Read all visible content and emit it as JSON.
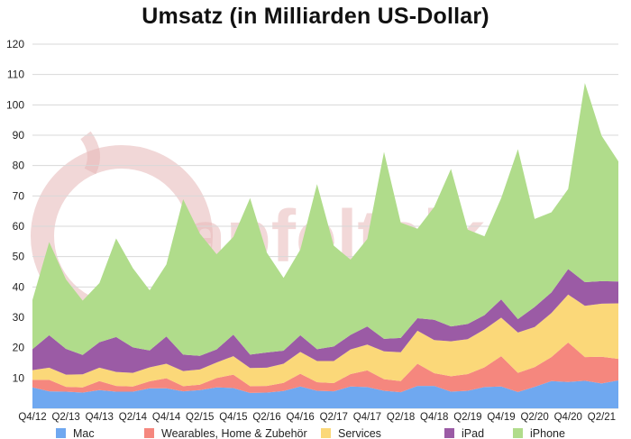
{
  "chart_data": {
    "type": "area",
    "stacked": true,
    "title": "Umsatz (in Milliarden US-Dollar)",
    "watermark": "apfeltalk",
    "ylim": [
      0,
      120
    ],
    "yticks": [
      10,
      20,
      30,
      40,
      50,
      60,
      70,
      80,
      90,
      100,
      110,
      120
    ],
    "grid": true,
    "legend_position": "bottom",
    "x": [
      "Q4/12",
      "Q1/13",
      "Q2/13",
      "Q3/13",
      "Q4/13",
      "Q1/14",
      "Q2/14",
      "Q3/14",
      "Q4/14",
      "Q1/15",
      "Q2/15",
      "Q3/15",
      "Q4/15",
      "Q1/16",
      "Q2/16",
      "Q3/16",
      "Q4/16",
      "Q1/17",
      "Q2/17",
      "Q3/17",
      "Q4/17",
      "Q1/18",
      "Q2/18",
      "Q3/18",
      "Q4/18",
      "Q1/19",
      "Q2/19",
      "Q3/19",
      "Q4/19",
      "Q1/20",
      "Q2/20",
      "Q3/20",
      "Q4/20",
      "Q1/21",
      "Q2/21",
      "Q3/21"
    ],
    "xtick_labels": [
      "Q4/12",
      "Q2/13",
      "Q4/13",
      "Q2/14",
      "Q4/14",
      "Q2/15",
      "Q4/15",
      "Q2/16",
      "Q4/16",
      "Q2/17",
      "Q4/17",
      "Q2/18",
      "Q4/18",
      "Q2/19",
      "Q4/19",
      "Q2/20",
      "Q4/20",
      "Q2/21"
    ],
    "series": [
      {
        "name": "Mac",
        "color": "#6fa8f0",
        "values": [
          6.9,
          5.6,
          5.5,
          5.2,
          6.0,
          5.5,
          5.5,
          6.6,
          6.6,
          5.6,
          6.0,
          6.9,
          6.7,
          5.1,
          5.2,
          5.7,
          7.2,
          5.8,
          5.6,
          7.2,
          7.0,
          5.8,
          5.3,
          7.4,
          7.4,
          5.5,
          5.8,
          7.0,
          7.2,
          5.4,
          7.1,
          9.0,
          8.7,
          9.1,
          8.2,
          9.2
        ]
      },
      {
        "name": "Wearables, Home & Zubehör",
        "color": "#f5877e",
        "values": [
          2.5,
          3.8,
          1.6,
          1.7,
          3.0,
          1.9,
          1.7,
          2.3,
          3.3,
          1.7,
          1.8,
          3.1,
          4.4,
          2.2,
          2.2,
          2.7,
          4.2,
          2.8,
          2.7,
          4.1,
          5.5,
          3.8,
          3.7,
          7.3,
          4.2,
          5.1,
          5.5,
          6.5,
          10.0,
          6.3,
          6.5,
          7.9,
          13.0,
          7.8,
          8.8,
          7.1
        ]
      },
      {
        "name": "Services",
        "color": "#fbd879",
        "values": [
          3.2,
          4.0,
          4.0,
          4.3,
          4.4,
          4.6,
          4.5,
          4.6,
          4.8,
          5.0,
          5.0,
          5.1,
          6.1,
          6.0,
          6.0,
          6.3,
          7.2,
          7.0,
          7.3,
          8.1,
          8.5,
          9.2,
          9.5,
          10.9,
          10.9,
          11.5,
          11.5,
          12.5,
          12.7,
          13.3,
          13.2,
          14.5,
          15.8,
          16.9,
          17.5,
          18.3
        ]
      },
      {
        "name": "iPad",
        "color": "#9b5ba5",
        "values": [
          6.9,
          10.7,
          8.5,
          6.4,
          8.4,
          11.5,
          8.4,
          5.6,
          9.0,
          5.4,
          4.5,
          4.3,
          7.1,
          4.4,
          5.0,
          4.3,
          5.5,
          3.9,
          4.8,
          4.8,
          6.0,
          4.1,
          4.7,
          4.1,
          6.7,
          4.9,
          5.0,
          4.7,
          6.0,
          4.4,
          6.6,
          6.8,
          8.4,
          7.8,
          7.4,
          7.2
        ]
      },
      {
        "name": "iPhone",
        "color": "#b0dc8b",
        "values": [
          16.2,
          30.7,
          22.9,
          17.9,
          19.5,
          32.5,
          26.1,
          19.8,
          23.7,
          51.2,
          40.3,
          31.4,
          32.2,
          51.6,
          32.9,
          24.0,
          28.2,
          54.4,
          33.2,
          24.8,
          28.8,
          61.6,
          38.0,
          29.5,
          37.2,
          51.9,
          31.1,
          26.0,
          33.4,
          56.0,
          29.0,
          26.4,
          26.4,
          65.6,
          47.9,
          39.6
        ]
      }
    ]
  }
}
